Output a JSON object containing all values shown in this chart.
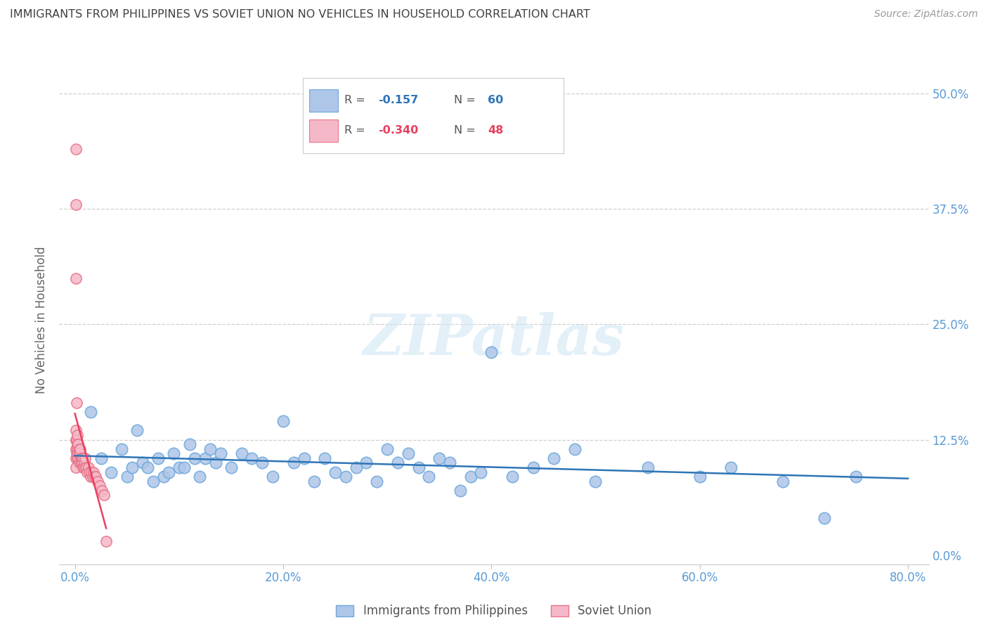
{
  "title": "IMMIGRANTS FROM PHILIPPINES VS SOVIET UNION NO VEHICLES IN HOUSEHOLD CORRELATION CHART",
  "source": "Source: ZipAtlas.com",
  "xlabel_vals": [
    0.0,
    20.0,
    40.0,
    60.0,
    80.0
  ],
  "ylabel_vals": [
    0.0,
    12.5,
    25.0,
    37.5,
    50.0
  ],
  "xlim": [
    -1.5,
    82.0
  ],
  "ylim": [
    -1.0,
    52.0
  ],
  "ylabel": "No Vehicles in Household",
  "philippines_R": -0.157,
  "philippines_N": 60,
  "soviet_R": -0.34,
  "soviet_N": 48,
  "philippines_color": "#aec6e8",
  "soviet_color": "#f5b8c8",
  "philippines_edge": "#6fa8dc",
  "soviet_edge": "#e8758a",
  "trend_blue": "#2e75b6",
  "trend_pink": "#e84060",
  "background": "#ffffff",
  "grid_color": "#d0d0d0",
  "axis_color": "#5b9bd5",
  "title_color": "#404040",
  "philippines_x": [
    1.5,
    2.5,
    3.5,
    4.5,
    5.0,
    5.5,
    6.0,
    6.5,
    7.0,
    7.5,
    8.0,
    8.5,
    9.0,
    9.5,
    10.0,
    10.5,
    11.0,
    11.5,
    12.0,
    12.5,
    13.0,
    13.5,
    14.0,
    15.0,
    16.0,
    17.0,
    18.0,
    19.0,
    20.0,
    21.0,
    22.0,
    23.0,
    24.0,
    25.0,
    26.0,
    27.0,
    28.0,
    29.0,
    30.0,
    31.0,
    32.0,
    33.0,
    34.0,
    35.0,
    36.0,
    37.0,
    38.0,
    39.0,
    40.0,
    42.0,
    44.0,
    46.0,
    48.0,
    50.0,
    55.0,
    60.0,
    63.0,
    68.0,
    72.0,
    75.0
  ],
  "philippines_y": [
    15.5,
    10.5,
    9.0,
    11.5,
    8.5,
    9.5,
    13.5,
    10.0,
    9.5,
    8.0,
    10.5,
    8.5,
    9.0,
    11.0,
    9.5,
    9.5,
    12.0,
    10.5,
    8.5,
    10.5,
    11.5,
    10.0,
    11.0,
    9.5,
    11.0,
    10.5,
    10.0,
    8.5,
    14.5,
    10.0,
    10.5,
    8.0,
    10.5,
    9.0,
    8.5,
    9.5,
    10.0,
    8.0,
    11.5,
    10.0,
    11.0,
    9.5,
    8.5,
    10.5,
    10.0,
    7.0,
    8.5,
    9.0,
    22.0,
    8.5,
    9.5,
    10.5,
    11.5,
    8.0,
    9.5,
    8.5,
    9.5,
    8.0,
    4.0,
    8.5
  ],
  "soviet_x": [
    0.1,
    0.1,
    0.1,
    0.1,
    0.1,
    0.1,
    0.1,
    0.1,
    0.15,
    0.15,
    0.15,
    0.2,
    0.2,
    0.2,
    0.25,
    0.25,
    0.3,
    0.3,
    0.35,
    0.4,
    0.4,
    0.45,
    0.5,
    0.55,
    0.6,
    0.65,
    0.7,
    0.75,
    0.8,
    0.85,
    0.9,
    0.95,
    1.0,
    1.1,
    1.2,
    1.3,
    1.4,
    1.5,
    1.6,
    1.7,
    1.8,
    1.9,
    2.0,
    2.2,
    2.4,
    2.6,
    2.8,
    3.0
  ],
  "soviet_y": [
    44.0,
    38.0,
    30.0,
    13.5,
    12.5,
    11.5,
    10.5,
    9.5,
    16.5,
    12.5,
    11.0,
    13.0,
    11.5,
    10.5,
    12.0,
    11.0,
    12.0,
    10.5,
    11.0,
    11.5,
    10.0,
    11.0,
    11.5,
    10.5,
    10.0,
    10.5,
    10.0,
    9.5,
    10.5,
    9.5,
    10.0,
    9.5,
    10.5,
    9.5,
    9.0,
    9.5,
    9.0,
    8.5,
    9.0,
    8.5,
    9.0,
    8.5,
    8.5,
    8.0,
    7.5,
    7.0,
    6.5,
    1.5
  ]
}
